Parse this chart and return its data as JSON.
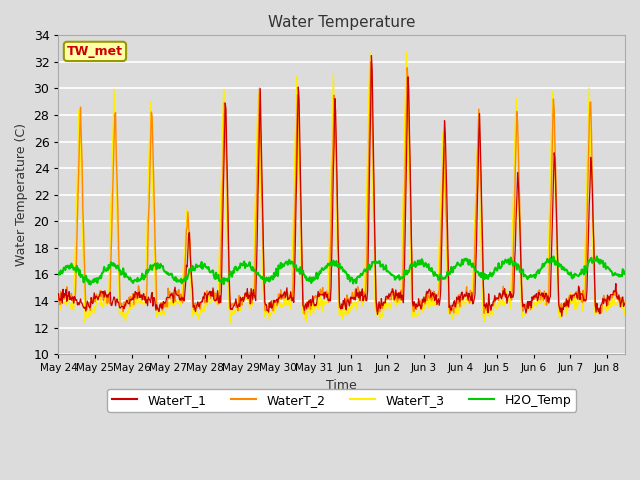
{
  "title": "Water Temperature",
  "xlabel": "Time",
  "ylabel": "Water Temperature (C)",
  "ylim": [
    10,
    34
  ],
  "xlim_start": 0,
  "xlim_end": 15.5,
  "background_color": "#dcdcdc",
  "series_colors": {
    "WaterT_1": "#cc0000",
    "WaterT_2": "#ff8800",
    "WaterT_3": "#ffee00",
    "H2O_Temp": "#00cc00"
  },
  "x_tick_labels": [
    "May 24",
    "May 25",
    "May 26",
    "May 27",
    "May 28",
    "May 29",
    "May 30",
    "May 31",
    "Jun 1",
    "Jun 2",
    "Jun 3",
    "Jun 4",
    "Jun 5",
    "Jun 6",
    "Jun 7",
    "Jun 8"
  ],
  "x_tick_positions": [
    0,
    1,
    2,
    3,
    4,
    5,
    6,
    7,
    8,
    9,
    10,
    11,
    12,
    13,
    14,
    15
  ],
  "y_ticks": [
    10,
    12,
    14,
    16,
    18,
    20,
    22,
    24,
    26,
    28,
    30,
    32,
    34
  ],
  "annotation": {
    "text": "TW_met",
    "text_color": "#cc0000",
    "box_facecolor": "#ffffaa",
    "box_edgecolor": "#999900"
  },
  "legend_labels": [
    "WaterT_1",
    "WaterT_2",
    "WaterT_3",
    "H2O_Temp"
  ]
}
